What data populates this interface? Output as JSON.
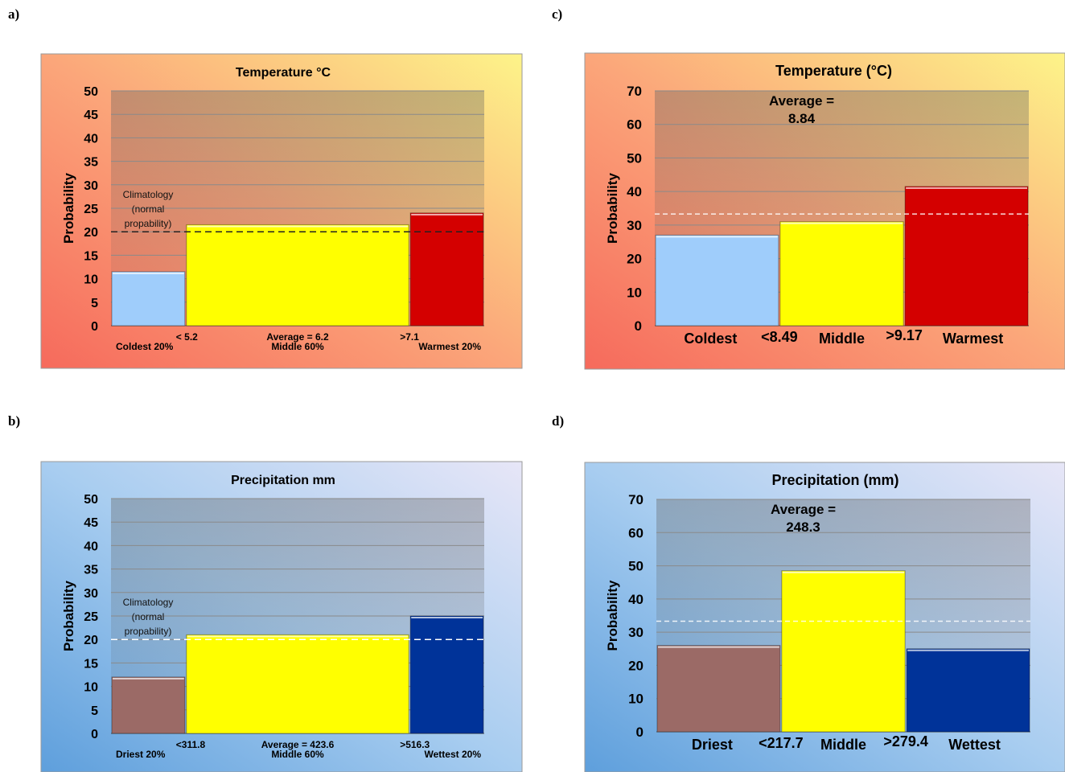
{
  "panels": [
    {
      "letter": "a)",
      "chart_data": {
        "type": "bar",
        "title": "Temperature  °C",
        "ylabel": "Probability",
        "ylim": [
          0,
          50
        ],
        "yticks": [
          0,
          5,
          10,
          15,
          20,
          25,
          30,
          35,
          40,
          45,
          50
        ],
        "categories": [
          "Coldest 20%",
          "Middle 60%",
          "Warmest 20%"
        ],
        "values": [
          11.5,
          21.5,
          24
        ],
        "widths": [
          0.2,
          0.6,
          0.2
        ],
        "colors": [
          "#9fcdfb",
          "#ffff00",
          "#d40000"
        ],
        "boundaries": [
          "< 5.2",
          ">7.1"
        ],
        "center_label": "Average = 6.2",
        "reference_line": {
          "value": 20,
          "label": [
            "Climatology",
            "(normal",
            "propability)"
          ]
        },
        "background": [
          "#f66a5c",
          "#fba67a",
          "#fdf489"
        ],
        "grid": true
      }
    },
    {
      "letter": "b)",
      "chart_data": {
        "type": "bar",
        "title": "Precipitation  mm",
        "ylabel": "Probability",
        "ylim": [
          0,
          50
        ],
        "yticks": [
          0,
          5,
          10,
          15,
          20,
          25,
          30,
          35,
          40,
          45,
          50
        ],
        "categories": [
          "Driest 20%",
          "Middle 60%",
          "Wettest 20%"
        ],
        "values": [
          12,
          21,
          25
        ],
        "widths": [
          0.2,
          0.6,
          0.2
        ],
        "colors": [
          "#9b6a66",
          "#ffff00",
          "#003399"
        ],
        "boundaries": [
          "<311.8",
          ">516.3"
        ],
        "center_label": "Average = 423.6",
        "reference_line": {
          "value": 20,
          "label": [
            "Climatology",
            "(normal",
            "propability)"
          ]
        },
        "background": [
          "#5e9fdc",
          "#a8cdf0",
          "#e7e6f7"
        ],
        "grid": true
      }
    },
    {
      "letter": "c)",
      "chart_data": {
        "type": "bar",
        "title": "Temperature  (°C)",
        "ylabel": "Probability",
        "ylim": [
          0,
          70
        ],
        "yticks": [
          0,
          10,
          20,
          30,
          40,
          50,
          60,
          70
        ],
        "categories": [
          "Coldest",
          "Middle",
          "Warmest"
        ],
        "values": [
          27,
          31,
          41.5
        ],
        "widths": [
          0.333,
          0.334,
          0.333
        ],
        "colors": [
          "#9fcdfb",
          "#ffff00",
          "#d40000"
        ],
        "boundaries": [
          "<8.49",
          ">9.17"
        ],
        "annotation": [
          "Average =",
          "8.84"
        ],
        "reference_line": {
          "value": 33.3
        },
        "background": [
          "#f66a5c",
          "#fba67a",
          "#fdf489"
        ],
        "grid": true
      }
    },
    {
      "letter": "d)",
      "chart_data": {
        "type": "bar",
        "title": "Precipitation  (mm)",
        "ylabel": "Probability",
        "ylim": [
          0,
          70
        ],
        "yticks": [
          0,
          10,
          20,
          30,
          40,
          50,
          60,
          70
        ],
        "categories": [
          "Driest",
          "Middle",
          "Wettest"
        ],
        "values": [
          26,
          48.5,
          25
        ],
        "widths": [
          0.333,
          0.334,
          0.333
        ],
        "colors": [
          "#9b6a66",
          "#ffff00",
          "#003399"
        ],
        "boundaries": [
          "<217.7",
          ">279.4"
        ],
        "annotation": [
          "Average =",
          "248.3"
        ],
        "reference_line": {
          "value": 33.3
        },
        "background": [
          "#5e9fdc",
          "#a8cdf0",
          "#e7e6f7"
        ],
        "grid": true
      }
    }
  ]
}
